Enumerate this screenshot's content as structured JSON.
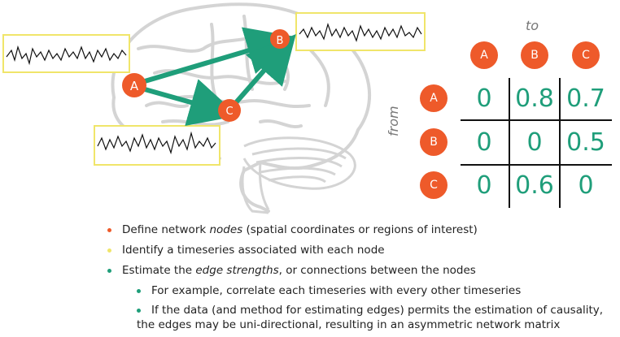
{
  "nodes": {
    "a": "A",
    "b": "B",
    "c": "C"
  },
  "matrix": {
    "to_label": "to",
    "from_label": "from",
    "cols": [
      "A",
      "B",
      "C"
    ],
    "rows": [
      {
        "label": "A",
        "values": [
          "0",
          "0.8",
          "0.7"
        ]
      },
      {
        "label": "B",
        "values": [
          "0",
          "0",
          "0.5"
        ]
      },
      {
        "label": "C",
        "values": [
          "0",
          "0.6",
          "0"
        ]
      }
    ]
  },
  "colors": {
    "node": "#ee5a2a",
    "edge": "#1f9e7a",
    "timeseries_box": "#f0e56a",
    "brain": "#d9d9d9",
    "bullet_orange": "#ee5a2a",
    "bullet_yellow": "#f0e56a",
    "bullet_teal": "#1f9e7a"
  },
  "bullets": {
    "b1_pre": "Define network ",
    "b1_em": "nodes",
    "b1_post": " (spatial coordinates or regions of interest)",
    "b2": "Identify a timeseries associated with each node",
    "b3_pre": "Estimate the ",
    "b3_em": "edge strengths",
    "b3_post": ", or connections between the nodes",
    "b4": "For example, correlate each timeseries with every other timeseries",
    "b5_line1": "If the data (and method for estimating edges) permits the estimation of causality,",
    "b5_line2": "the edges may be uni-directional, resulting in an asymmetric network matrix"
  }
}
